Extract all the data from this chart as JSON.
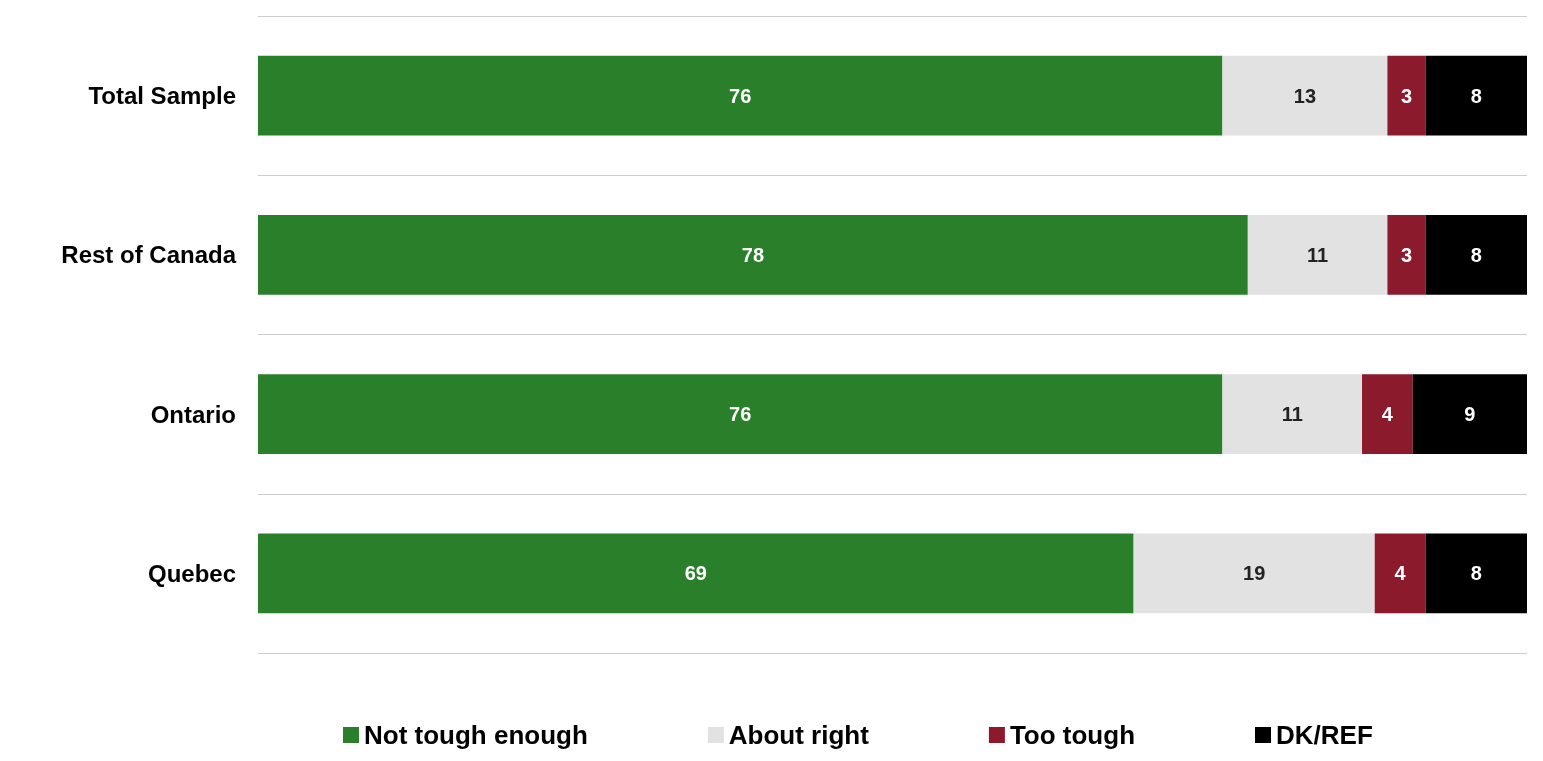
{
  "chart_data": {
    "type": "bar",
    "orientation": "horizontal",
    "stacked": true,
    "categories": [
      "Total Sample",
      "Rest of Canada",
      "Ontario",
      "Quebec"
    ],
    "series": [
      {
        "name": "Not tough enough",
        "color": "#2a7f2a",
        "values": [
          76,
          78,
          76,
          69
        ]
      },
      {
        "name": "About right",
        "color": "#e2e2e2",
        "values": [
          13,
          11,
          11,
          19
        ]
      },
      {
        "name": "Too tough",
        "color": "#8b1a2c",
        "values": [
          3,
          3,
          4,
          4
        ]
      },
      {
        "name": "DK/REF",
        "color": "#000000",
        "values": [
          8,
          8,
          9,
          8
        ]
      }
    ],
    "xlim": [
      0,
      100
    ],
    "tick_labels": "y",
    "grid": "y",
    "data_labels": true,
    "legend": "bottom"
  }
}
